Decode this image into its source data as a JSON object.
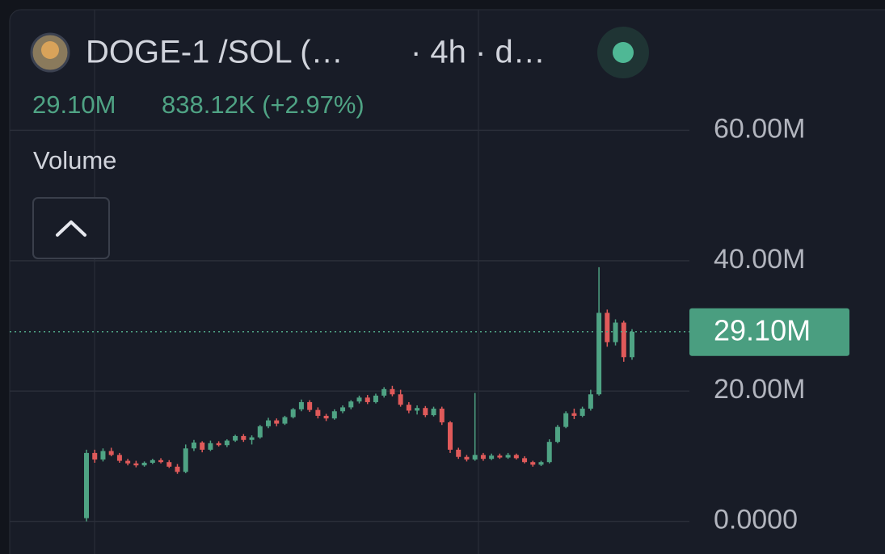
{
  "chart_data": {
    "type": "candlestick",
    "title": "DOGE-1 /SOL (…",
    "interval": "· 4h · d…",
    "volume_label": "Volume",
    "last_price": {
      "value": 29.1,
      "label": "29.10M"
    },
    "change": "838.12K (+2.97%)",
    "up_color": "#4fa384",
    "down_color": "#e05a5a",
    "ylim": [
      -5,
      80
    ],
    "yticks": [
      {
        "value": 0,
        "label": "0.0000"
      },
      {
        "value": 20,
        "label": "20.00M"
      },
      {
        "value": 40,
        "label": "40.00M"
      },
      {
        "value": 60,
        "label": "60.00M"
      }
    ],
    "grid": true,
    "open": [
      0.5,
      10.5,
      9.5,
      10.8,
      10.2,
      9.3,
      8.9,
      8.6,
      9.0,
      9.4,
      9.1,
      8.4,
      7.6,
      11.2,
      12.1,
      11.0,
      12.0,
      11.7,
      12.4,
      13.1,
      12.5,
      12.9,
      14.6,
      15.5,
      15.0,
      16.0,
      17.2,
      18.3,
      17.1,
      16.2,
      15.8,
      16.9,
      17.5,
      18.4,
      19.0,
      18.3,
      19.3,
      20.3,
      19.5,
      17.9,
      17.0,
      17.4,
      16.3,
      17.3,
      15.2,
      11.0,
      9.9,
      9.5,
      10.2,
      9.6,
      10.1,
      9.8,
      10.2,
      9.7,
      9.1,
      8.7,
      9.1,
      12.2,
      14.5,
      16.6,
      16.2,
      17.3,
      19.5,
      32.0,
      27.5,
      30.5,
      25.2
    ],
    "high": [
      11,
      11,
      11.2,
      11.3,
      10.5,
      9.6,
      9.3,
      9.2,
      9.6,
      9.7,
      9.4,
      8.8,
      11.8,
      12.5,
      12.3,
      12.4,
      12.3,
      12.6,
      13.3,
      13.4,
      13.2,
      14.8,
      15.9,
      15.8,
      16.2,
      17.4,
      18.7,
      18.6,
      17.5,
      16.5,
      17.2,
      17.8,
      18.6,
      19.3,
      19.4,
      19.6,
      20.6,
      20.8,
      20.2,
      18.3,
      17.8,
      17.7,
      17.6,
      17.6,
      15.4,
      11.3,
      10.2,
      19.7,
      10.5,
      10.4,
      10.4,
      10.5,
      10.4,
      10.0,
      9.3,
      9.3,
      12.6,
      14.8,
      16.9,
      17.3,
      17.6,
      20.2,
      39.0,
      32.5,
      31.0,
      30.8,
      29.5
    ],
    "low": [
      0,
      9,
      9.2,
      10,
      9,
      8.6,
      8.3,
      8.4,
      8.8,
      8.9,
      8.2,
      7.3,
      7.4,
      10.8,
      10.6,
      10.8,
      11.5,
      11.4,
      12.2,
      12.2,
      11.8,
      12.7,
      14.3,
      14.6,
      14.8,
      15.8,
      16.9,
      16.8,
      15.8,
      15.4,
      15.6,
      16.6,
      17.2,
      18.1,
      18.0,
      18.1,
      19.0,
      19.2,
      17.6,
      16.6,
      16.4,
      16.0,
      16.1,
      14.8,
      10.5,
      9.6,
      9.2,
      9.3,
      9.3,
      9.4,
      9.6,
      9.6,
      9.5,
      8.9,
      8.4,
      8.5,
      8.9,
      12.0,
      14.3,
      15.7,
      16.0,
      17.0,
      19.3,
      26.8,
      27.0,
      24.5,
      24.8
    ],
    "close": [
      10.5,
      9.5,
      10.8,
      10.2,
      9.3,
      8.9,
      8.6,
      9.0,
      9.4,
      9.1,
      8.4,
      7.6,
      11.2,
      12.1,
      11.0,
      12.0,
      11.7,
      12.4,
      13.1,
      12.5,
      12.9,
      14.6,
      15.5,
      15.0,
      16.0,
      17.2,
      18.3,
      17.1,
      16.2,
      15.8,
      16.9,
      17.5,
      18.4,
      19.0,
      18.3,
      19.3,
      20.3,
      19.5,
      17.9,
      17.0,
      17.4,
      16.3,
      17.3,
      15.2,
      11.0,
      9.9,
      9.5,
      10.2,
      9.6,
      10.1,
      9.8,
      10.2,
      9.7,
      9.1,
      8.7,
      9.1,
      12.2,
      14.5,
      16.6,
      16.2,
      17.3,
      19.5,
      32.0,
      27.5,
      30.5,
      25.2,
      29.1
    ]
  }
}
